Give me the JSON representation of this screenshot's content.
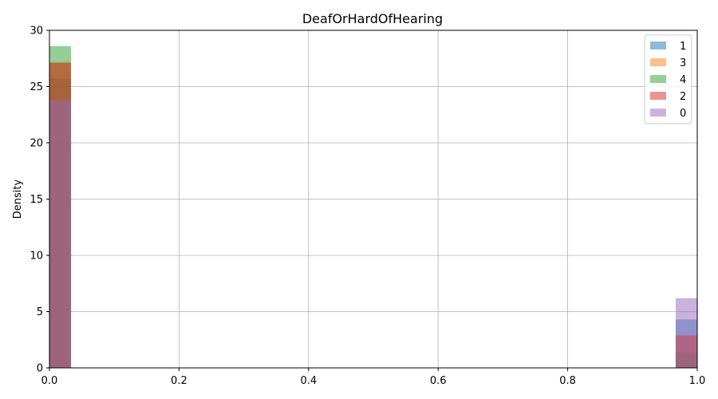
{
  "chart_data": {
    "type": "bar",
    "title": "DeafOrHardOfHearing",
    "xlabel": "",
    "ylabel": "Density",
    "xlim": [
      0,
      1
    ],
    "ylim": [
      0,
      30
    ],
    "xticks": [
      0,
      0.2,
      0.4,
      0.6,
      0.8,
      1.0
    ],
    "xtick_labels": [
      "0.0",
      "0.2",
      "0.4",
      "0.6",
      "0.8",
      "1.0"
    ],
    "yticks": [
      0,
      5,
      10,
      15,
      20,
      25,
      30
    ],
    "ytick_labels": [
      "0",
      "5",
      "10",
      "15",
      "20",
      "25",
      "30"
    ],
    "grid": true,
    "legend_position": "top-right",
    "bin_width": 0.0333,
    "bins": [
      [
        0,
        0.0333
      ],
      [
        0.9667,
        1.0
      ]
    ],
    "opacity": 0.5,
    "series": [
      {
        "name": "1",
        "color": "#1f77b4",
        "values": [
          25.7,
          4.3
        ]
      },
      {
        "name": "3",
        "color": "#ff7f0e",
        "values": [
          27.2,
          2.8
        ]
      },
      {
        "name": "4",
        "color": "#2ca02c",
        "values": [
          28.6,
          1.4
        ]
      },
      {
        "name": "2",
        "color": "#d62728",
        "values": [
          27.1,
          2.9
        ]
      },
      {
        "name": "0",
        "color": "#9467bd",
        "values": [
          23.8,
          6.2
        ]
      }
    ]
  }
}
